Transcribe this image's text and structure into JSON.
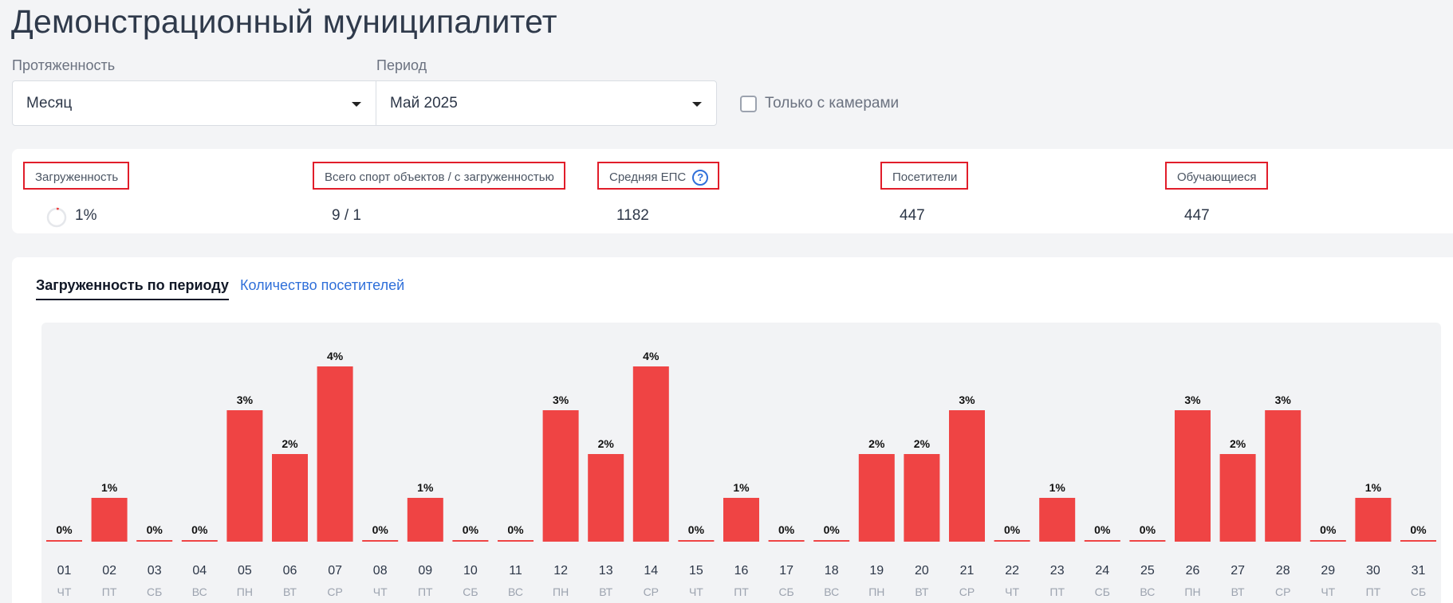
{
  "page": {
    "title": "Демонстрационный муниципалитет"
  },
  "filters": {
    "duration_label": "Протяженность",
    "duration_value": "Месяц",
    "period_label": "Период",
    "period_value": "Май 2025",
    "camera_only_label": "Только с камерами",
    "camera_only_checked": false
  },
  "stats": {
    "load_title": "Загруженность",
    "load_value": "1%",
    "load_fraction": 0.01,
    "objects_title": "Всего спорт объектов / с загруженностью",
    "objects_value": "9 / 1",
    "eps_title": "Средняя ЕПС",
    "eps_help": "?",
    "eps_value": "1182",
    "visitors_title": "Посетители",
    "visitors_value": "447",
    "students_title": "Обучающиеся",
    "students_value": "447"
  },
  "tabs": {
    "load_by_period": "Загруженность по периоду",
    "visitor_count": "Количество посетителей"
  },
  "colors": {
    "bar": "#ef4444",
    "accent": "#2f6fd9",
    "highlight_border": "#e11d2a"
  },
  "chart_data": {
    "type": "bar",
    "categories": [
      "01",
      "02",
      "03",
      "04",
      "05",
      "06",
      "07",
      "08",
      "09",
      "10",
      "11",
      "12",
      "13",
      "14",
      "15",
      "16",
      "17",
      "18",
      "19",
      "20",
      "21",
      "22",
      "23",
      "24",
      "25",
      "26",
      "27",
      "28",
      "29",
      "30",
      "31"
    ],
    "weekdays": [
      "ЧТ",
      "ПТ",
      "СБ",
      "ВС",
      "ПН",
      "ВТ",
      "СР",
      "ЧТ",
      "ПТ",
      "СБ",
      "ВС",
      "ПН",
      "ВТ",
      "СР",
      "ЧТ",
      "ПТ",
      "СБ",
      "ВС",
      "ПН",
      "ВТ",
      "СР",
      "ЧТ",
      "ПТ",
      "СБ",
      "ВС",
      "ПН",
      "ВТ",
      "СР",
      "ЧТ",
      "ПТ",
      "СБ"
    ],
    "values": [
      0,
      1,
      0,
      0,
      3,
      2,
      4,
      0,
      1,
      0,
      0,
      3,
      2,
      4,
      0,
      1,
      0,
      0,
      2,
      2,
      3,
      0,
      1,
      0,
      0,
      3,
      2,
      3,
      0,
      1,
      0
    ],
    "value_labels": [
      "0%",
      "1%",
      "0%",
      "0%",
      "3%",
      "2%",
      "4%",
      "0%",
      "1%",
      "0%",
      "0%",
      "3%",
      "2%",
      "4%",
      "0%",
      "1%",
      "0%",
      "0%",
      "2%",
      "2%",
      "3%",
      "0%",
      "1%",
      "0%",
      "0%",
      "3%",
      "2%",
      "3%",
      "0%",
      "1%",
      "0%"
    ],
    "ylim": [
      0,
      4
    ],
    "grid": false
  }
}
